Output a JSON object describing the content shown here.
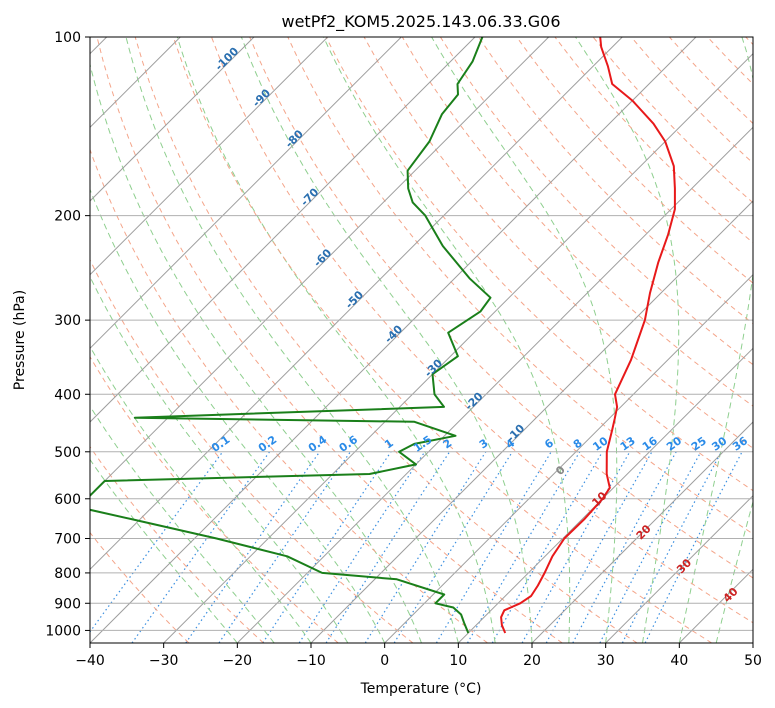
{
  "chart_data": {
    "type": "line",
    "title": "wetPf2_KOM5.2025.143.06.33.G06",
    "xlabel": "Temperature (°C)",
    "ylabel": "Pressure (hPa)",
    "xlim": [
      -40,
      50
    ],
    "ylim": [
      1050,
      100
    ],
    "y_scale": "log",
    "skew": "45-degree skewed temperature lines",
    "grid": true,
    "x_ticks": [
      "−40",
      "−30",
      "−20",
      "−10",
      "0",
      "10",
      "20",
      "30",
      "40",
      "50"
    ],
    "y_ticks": [
      "100",
      "200",
      "300",
      "400",
      "500",
      "600",
      "700",
      "800",
      "900",
      "1000"
    ],
    "colors": {
      "temperature": "#e8191a",
      "dewpoint": "#1a7f1a",
      "isotherm": "#9e9e9e",
      "dry_adiabat": "#f4a58a",
      "moist_adiabat": "#8fcf8f",
      "mixing_ratio": "#3b8fe0",
      "isotherm_label": "#2a6fb0",
      "mr_label": "#2a8be8",
      "theta_label": "#cc2222"
    },
    "series": [
      {
        "name": "temperature",
        "points": [
          [
            15.0,
            1010
          ],
          [
            13.5,
            980
          ],
          [
            12.3,
            950
          ],
          [
            11.8,
            925
          ],
          [
            13.0,
            900
          ],
          [
            13.5,
            875
          ],
          [
            13.0,
            840
          ],
          [
            12.2,
            800
          ],
          [
            11.0,
            750
          ],
          [
            10.2,
            700
          ],
          [
            10.3,
            650
          ],
          [
            10.0,
            600
          ],
          [
            9.5,
            575
          ],
          [
            7.2,
            545
          ],
          [
            4.2,
            500
          ],
          [
            2.0,
            460
          ],
          [
            0.8,
            440
          ],
          [
            -0.5,
            420
          ],
          [
            -2.5,
            400
          ],
          [
            -5.0,
            350
          ],
          [
            -8.5,
            300
          ],
          [
            -11.5,
            270
          ],
          [
            -14.5,
            240
          ],
          [
            -17.0,
            215
          ],
          [
            -19.5,
            195
          ],
          [
            -22.3,
            180
          ],
          [
            -25.5,
            165
          ],
          [
            -30.0,
            150
          ],
          [
            -34.0,
            140
          ],
          [
            -40.0,
            128
          ],
          [
            -45.0,
            120
          ],
          [
            -48.0,
            112
          ],
          [
            -51.5,
            104
          ],
          [
            -53.0,
            100
          ]
        ]
      },
      {
        "name": "dewpoint",
        "points": [
          [
            10.0,
            1010
          ],
          [
            8.0,
            970
          ],
          [
            6.5,
            940
          ],
          [
            4.5,
            915
          ],
          [
            1.5,
            900
          ],
          [
            1.5,
            870
          ],
          [
            -7.0,
            820
          ],
          [
            -18.0,
            800
          ],
          [
            -25.0,
            750
          ],
          [
            -37.0,
            700
          ],
          [
            -51.0,
            650
          ],
          [
            -60.0,
            620
          ],
          [
            -60.0,
            560
          ],
          [
            -25.0,
            545
          ],
          [
            -20.0,
            525
          ],
          [
            -24.0,
            500
          ],
          [
            -23.0,
            485
          ],
          [
            -18.5,
            470
          ],
          [
            -26.0,
            445
          ],
          [
            -64.5,
            438
          ],
          [
            -24.0,
            420
          ],
          [
            -27.0,
            400
          ],
          [
            -30.0,
            370
          ],
          [
            -29.0,
            345
          ],
          [
            -33.5,
            315
          ],
          [
            -32.0,
            290
          ],
          [
            -32.5,
            275
          ],
          [
            -38.0,
            255
          ],
          [
            -46.0,
            225
          ],
          [
            -52.5,
            200
          ],
          [
            -56.0,
            190
          ],
          [
            -58.5,
            180
          ],
          [
            -61.0,
            168
          ],
          [
            -62.0,
            150
          ],
          [
            -64.0,
            135
          ],
          [
            -64.5,
            125
          ],
          [
            -66.0,
            120
          ],
          [
            -67.0,
            110
          ],
          [
            -69.0,
            100
          ]
        ]
      }
    ],
    "isotherm_labels": [
      "-100",
      "-90",
      "-80",
      "-70",
      "-60",
      "-50",
      "-40",
      "-30",
      "-20",
      "-10"
    ],
    "mixing_ratio_labels": [
      "0.1",
      "0.2",
      "0.4",
      "0.6",
      "1",
      "1.5",
      "2",
      "3",
      "4",
      "6",
      "8",
      "10",
      "13",
      "16",
      "20",
      "25",
      "30",
      "36"
    ],
    "theta_labels": [
      "0",
      "10",
      "20",
      "30",
      "40"
    ]
  }
}
